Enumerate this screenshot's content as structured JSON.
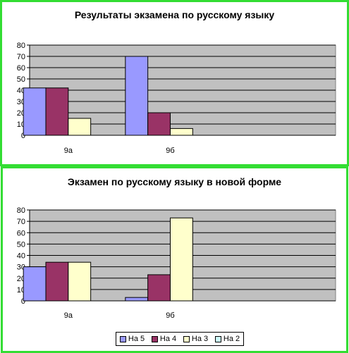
{
  "colors": {
    "plot_bg": "#c0c0c0",
    "grid": "#000000",
    "series": [
      "#9999ff",
      "#993366",
      "#ffffcc",
      "#ccffff"
    ],
    "panel_border": "#33dd33"
  },
  "chart_data": [
    {
      "type": "bar",
      "title": "Результаты экзамена по русскому языку",
      "categories": [
        "9а",
        "9б",
        ""
      ],
      "series": [
        {
          "name": "На 5",
          "values": [
            42,
            70,
            0
          ]
        },
        {
          "name": "На 4",
          "values": [
            42,
            20,
            0
          ]
        },
        {
          "name": "На 3",
          "values": [
            15,
            6,
            0
          ]
        },
        {
          "name": "На 2",
          "values": [
            0,
            0,
            0
          ]
        }
      ],
      "ylim": [
        0,
        80
      ],
      "yticks": [
        0,
        10,
        20,
        30,
        40,
        50,
        60,
        70,
        80
      ],
      "grid": true,
      "legend": "none"
    },
    {
      "type": "bar",
      "title": "Экзамен по русскому языку в новой форме",
      "categories": [
        "9а",
        "9б",
        ""
      ],
      "series": [
        {
          "name": "На 5",
          "values": [
            30,
            3,
            0
          ]
        },
        {
          "name": "На 4",
          "values": [
            34,
            23,
            0
          ]
        },
        {
          "name": "На 3",
          "values": [
            34,
            73,
            0
          ]
        },
        {
          "name": "На 2",
          "values": [
            0,
            0,
            0
          ]
        }
      ],
      "ylim": [
        0,
        80
      ],
      "yticks": [
        0,
        10,
        20,
        30,
        40,
        50,
        60,
        70,
        80
      ],
      "grid": true,
      "legend": "bottom"
    }
  ]
}
